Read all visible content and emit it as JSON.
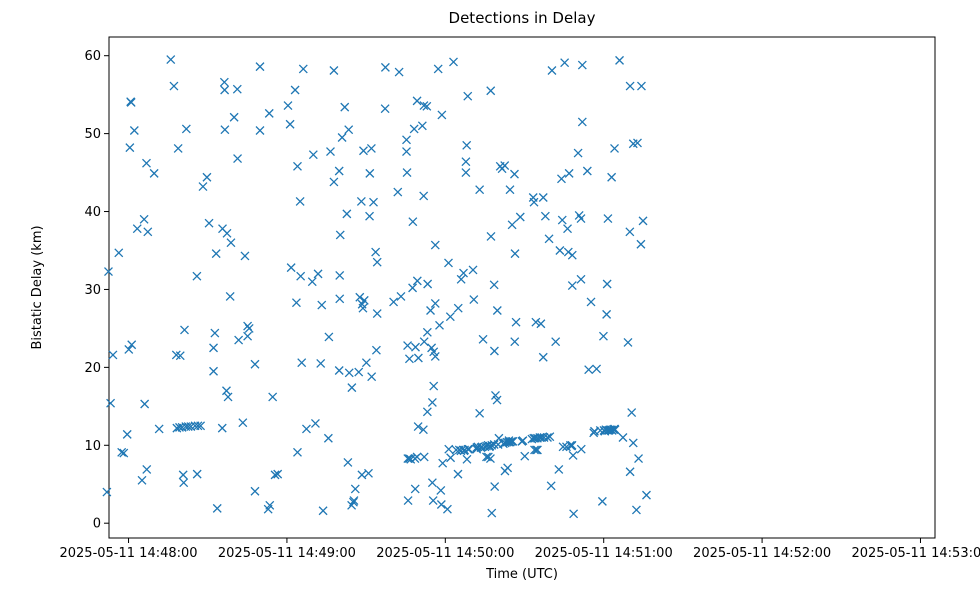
{
  "chart_data": {
    "type": "scatter",
    "title": "Detections in Delay",
    "xlabel": "Time (UTC)",
    "ylabel": "Bistatic Delay (km)",
    "x_tick_labels": [
      "2025-05-11 14:48:00",
      "2025-05-11 14:49:00",
      "2025-05-11 14:50:00",
      "2025-05-11 14:51:00",
      "2025-05-11 14:52:00",
      "2025-05-11 14:53:00"
    ],
    "x_ticks_seconds": [
      0,
      60,
      120,
      180,
      240,
      300
    ],
    "y_ticks": [
      0,
      10,
      20,
      30,
      40,
      50,
      60
    ],
    "xlim_seconds_after_14_48_00": [
      -7.4,
      305.5
    ],
    "ylim": [
      -1.9,
      62.4
    ],
    "grid": false,
    "marker": "x",
    "color": "#1f77b4",
    "points_seconds_after_14_48_00": [
      [
        -8.2,
        4.0
      ],
      [
        -7.6,
        32.3
      ],
      [
        -6.8,
        15.4
      ],
      [
        -5.9,
        21.6
      ],
      [
        -3.7,
        34.7
      ],
      [
        -2.6,
        9.1
      ],
      [
        -1.8,
        9.0
      ],
      [
        -0.5,
        11.4
      ],
      [
        0.1,
        22.3
      ],
      [
        0.5,
        48.2
      ],
      [
        0.8,
        54.1
      ],
      [
        1.0,
        54.0
      ],
      [
        1.2,
        22.9
      ],
      [
        2.2,
        50.4
      ],
      [
        3.3,
        37.8
      ],
      [
        5.1,
        5.5
      ],
      [
        5.9,
        39.0
      ],
      [
        6.1,
        15.3
      ],
      [
        6.8,
        46.2
      ],
      [
        6.9,
        6.9
      ],
      [
        7.3,
        37.4
      ],
      [
        9.7,
        44.9
      ],
      [
        11.6,
        12.1
      ],
      [
        16.0,
        59.5
      ],
      [
        17.2,
        56.1
      ],
      [
        18.1,
        21.6
      ],
      [
        18.3,
        12.2
      ],
      [
        18.8,
        48.1
      ],
      [
        19.3,
        12.3
      ],
      [
        19.6,
        21.5
      ],
      [
        20.3,
        12.3
      ],
      [
        20.7,
        6.2
      ],
      [
        20.9,
        5.2
      ],
      [
        21.2,
        24.8
      ],
      [
        21.7,
        12.4
      ],
      [
        21.9,
        50.6
      ],
      [
        22.6,
        12.4
      ],
      [
        23.6,
        12.4
      ],
      [
        25.2,
        12.5
      ],
      [
        25.9,
        31.7
      ],
      [
        26.0,
        6.3
      ],
      [
        26.3,
        12.5
      ],
      [
        27.3,
        12.5
      ],
      [
        28.2,
        43.2
      ],
      [
        29.7,
        44.4
      ],
      [
        30.5,
        38.5
      ],
      [
        32.2,
        19.5
      ],
      [
        32.2,
        22.5
      ],
      [
        32.7,
        24.4
      ],
      [
        33.2,
        34.6
      ],
      [
        33.6,
        1.9
      ],
      [
        35.5,
        12.2
      ],
      [
        35.6,
        37.8
      ],
      [
        36.3,
        56.6
      ],
      [
        36.4,
        55.6
      ],
      [
        36.5,
        50.5
      ],
      [
        37.1,
        17.0
      ],
      [
        37.3,
        37.2
      ],
      [
        37.7,
        16.2
      ],
      [
        38.5,
        29.1
      ],
      [
        38.8,
        36.0
      ],
      [
        40.0,
        52.1
      ],
      [
        41.2,
        55.7
      ],
      [
        41.3,
        46.8
      ],
      [
        41.7,
        23.5
      ],
      [
        43.3,
        12.9
      ],
      [
        44.1,
        34.3
      ],
      [
        45.1,
        24.0
      ],
      [
        45.1,
        25.3
      ],
      [
        45.7,
        25.0
      ],
      [
        47.9,
        4.1
      ],
      [
        47.9,
        20.4
      ],
      [
        49.8,
        58.6
      ],
      [
        49.8,
        50.4
      ],
      [
        52.9,
        1.8
      ],
      [
        53.3,
        52.6
      ],
      [
        53.5,
        2.3
      ],
      [
        54.6,
        16.2
      ],
      [
        55.5,
        6.2
      ],
      [
        56.5,
        6.3
      ],
      [
        60.4,
        53.6
      ],
      [
        61.2,
        51.2
      ],
      [
        61.6,
        32.8
      ],
      [
        63.1,
        55.6
      ],
      [
        63.6,
        28.3
      ],
      [
        64.0,
        9.1
      ],
      [
        64.0,
        45.8
      ],
      [
        65.0,
        41.3
      ],
      [
        65.2,
        31.7
      ],
      [
        65.6,
        20.6
      ],
      [
        66.2,
        58.3
      ],
      [
        67.4,
        12.1
      ],
      [
        69.6,
        31.0
      ],
      [
        70.0,
        47.3
      ],
      [
        70.8,
        12.8
      ],
      [
        71.8,
        32.0
      ],
      [
        72.8,
        20.5
      ],
      [
        73.2,
        28.0
      ],
      [
        73.7,
        1.6
      ],
      [
        75.7,
        10.9
      ],
      [
        75.9,
        23.9
      ],
      [
        76.5,
        47.7
      ],
      [
        77.8,
        58.1
      ],
      [
        77.8,
        43.8
      ],
      [
        79.8,
        19.6
      ],
      [
        79.8,
        45.2
      ],
      [
        80.0,
        31.8
      ],
      [
        80.0,
        28.8
      ],
      [
        80.2,
        37.0
      ],
      [
        80.9,
        49.5
      ],
      [
        81.9,
        53.4
      ],
      [
        82.7,
        39.7
      ],
      [
        83.1,
        7.8
      ],
      [
        83.4,
        50.5
      ],
      [
        83.6,
        19.3
      ],
      [
        84.5,
        2.3
      ],
      [
        84.6,
        17.4
      ],
      [
        85.2,
        2.7
      ],
      [
        85.4,
        2.9
      ],
      [
        85.9,
        4.4
      ],
      [
        87.2,
        19.4
      ],
      [
        87.6,
        29.0
      ],
      [
        88.2,
        41.3
      ],
      [
        88.4,
        6.2
      ],
      [
        88.5,
        28.1
      ],
      [
        88.8,
        27.6
      ],
      [
        89.0,
        47.8
      ],
      [
        89.3,
        28.6
      ],
      [
        90.1,
        20.6
      ],
      [
        90.9,
        6.4
      ],
      [
        91.3,
        39.4
      ],
      [
        91.4,
        44.9
      ],
      [
        92.0,
        48.1
      ],
      [
        92.1,
        18.8
      ],
      [
        92.8,
        41.2
      ],
      [
        93.6,
        34.8
      ],
      [
        93.9,
        22.2
      ],
      [
        94.2,
        33.5
      ],
      [
        94.2,
        26.9
      ],
      [
        97.2,
        53.2
      ],
      [
        97.3,
        58.5
      ],
      [
        100.4,
        28.4
      ],
      [
        102.0,
        42.5
      ],
      [
        102.5,
        57.9
      ],
      [
        103.2,
        29.1
      ],
      [
        105.3,
        47.7
      ],
      [
        105.3,
        49.2
      ],
      [
        105.5,
        45.0
      ],
      [
        105.7,
        22.8
      ],
      [
        105.8,
        8.3
      ],
      [
        105.9,
        2.9
      ],
      [
        106.4,
        21.1
      ],
      [
        106.4,
        8.3
      ],
      [
        106.9,
        8.2
      ],
      [
        107.6,
        30.2
      ],
      [
        107.7,
        38.7
      ],
      [
        108.2,
        50.6
      ],
      [
        108.5,
        8.3
      ],
      [
        108.6,
        4.4
      ],
      [
        108.7,
        22.6
      ],
      [
        109.3,
        8.5
      ],
      [
        109.3,
        54.2
      ],
      [
        109.4,
        31.1
      ],
      [
        109.7,
        12.4
      ],
      [
        109.8,
        21.2
      ],
      [
        111.3,
        51.0
      ],
      [
        111.7,
        12.0
      ],
      [
        111.8,
        42.0
      ],
      [
        111.9,
        53.6
      ],
      [
        112.0,
        23.3
      ],
      [
        112.0,
        8.5
      ],
      [
        113.0,
        53.5
      ],
      [
        113.2,
        24.5
      ],
      [
        113.2,
        14.3
      ],
      [
        113.3,
        30.7
      ],
      [
        114.4,
        27.3
      ],
      [
        114.8,
        22.5
      ],
      [
        115.1,
        15.5
      ],
      [
        115.1,
        5.2
      ],
      [
        115.4,
        2.9
      ],
      [
        115.6,
        22.0
      ],
      [
        115.6,
        17.6
      ],
      [
        116.2,
        28.2
      ],
      [
        116.2,
        21.4
      ],
      [
        116.2,
        35.7
      ],
      [
        117.3,
        58.3
      ],
      [
        117.8,
        25.4
      ],
      [
        118.3,
        4.2
      ],
      [
        118.5,
        2.4
      ],
      [
        118.7,
        52.4
      ],
      [
        119.0,
        7.7
      ],
      [
        120.8,
        1.8
      ],
      [
        121.2,
        33.4
      ],
      [
        121.3,
        9.5
      ],
      [
        121.9,
        26.5
      ],
      [
        122.0,
        8.4
      ],
      [
        123.1,
        59.2
      ],
      [
        124.1,
        9.4
      ],
      [
        124.8,
        6.3
      ],
      [
        124.9,
        27.6
      ],
      [
        125.3,
        9.4
      ],
      [
        125.9,
        9.3
      ],
      [
        126.0,
        31.3
      ],
      [
        126.9,
        32.1
      ],
      [
        127.1,
        9.3
      ],
      [
        127.3,
        9.4
      ],
      [
        127.8,
        45.0
      ],
      [
        127.8,
        46.4
      ],
      [
        128.1,
        48.5
      ],
      [
        128.2,
        8.2
      ],
      [
        128.5,
        54.8
      ],
      [
        128.6,
        9.5
      ],
      [
        129.0,
        9.5
      ],
      [
        130.5,
        32.5
      ],
      [
        130.8,
        28.7
      ],
      [
        131.9,
        9.5
      ],
      [
        131.9,
        9.7
      ],
      [
        132.3,
        9.8
      ],
      [
        133.0,
        42.8
      ],
      [
        133.0,
        14.1
      ],
      [
        133.5,
        9.7
      ],
      [
        133.9,
        9.8
      ],
      [
        134.3,
        23.6
      ],
      [
        135.0,
        9.8
      ],
      [
        135.6,
        8.5
      ],
      [
        135.6,
        9.9
      ],
      [
        136.2,
        10.0
      ],
      [
        136.3,
        8.5
      ],
      [
        136.7,
        9.8
      ],
      [
        136.9,
        9.9
      ],
      [
        137.1,
        8.3
      ],
      [
        137.2,
        55.5
      ],
      [
        137.3,
        36.8
      ],
      [
        137.6,
        1.3
      ],
      [
        137.6,
        10.0
      ],
      [
        138.5,
        10.1
      ],
      [
        138.5,
        30.6
      ],
      [
        138.6,
        22.1
      ],
      [
        138.7,
        4.7
      ],
      [
        139.0,
        16.4
      ],
      [
        139.6,
        15.8
      ],
      [
        139.7,
        27.3
      ],
      [
        140.0,
        10.1
      ],
      [
        140.3,
        10.9
      ],
      [
        140.8,
        45.8
      ],
      [
        141.5,
        45.5
      ],
      [
        142.0,
        10.2
      ],
      [
        142.5,
        45.9
      ],
      [
        142.6,
        6.7
      ],
      [
        142.7,
        10.3
      ],
      [
        143.3,
        10.4
      ],
      [
        143.6,
        7.1
      ],
      [
        144.0,
        10.4
      ],
      [
        144.1,
        10.6
      ],
      [
        144.5,
        42.8
      ],
      [
        144.6,
        10.4
      ],
      [
        145.1,
        10.5
      ],
      [
        145.3,
        38.3
      ],
      [
        145.6,
        10.5
      ],
      [
        146.2,
        44.8
      ],
      [
        146.3,
        23.3
      ],
      [
        146.4,
        34.6
      ],
      [
        146.8,
        25.8
      ],
      [
        148.4,
        39.3
      ],
      [
        149.0,
        10.5
      ],
      [
        149.4,
        10.6
      ],
      [
        150.1,
        8.6
      ],
      [
        152.8,
        10.8
      ],
      [
        153.3,
        41.8
      ],
      [
        153.5,
        10.9
      ],
      [
        153.6,
        41.2
      ],
      [
        153.8,
        9.4
      ],
      [
        154.1,
        10.9
      ],
      [
        154.3,
        25.8
      ],
      [
        154.5,
        9.4
      ],
      [
        154.9,
        10.9
      ],
      [
        154.9,
        9.4
      ],
      [
        155.8,
        11.0
      ],
      [
        156.2,
        25.6
      ],
      [
        156.5,
        11.0
      ],
      [
        157.1,
        41.8
      ],
      [
        157.1,
        21.3
      ],
      [
        157.4,
        11.0
      ],
      [
        157.9,
        39.4
      ],
      [
        158.7,
        11.0
      ],
      [
        159.3,
        36.5
      ],
      [
        159.6,
        11.1
      ],
      [
        160.1,
        4.8
      ],
      [
        160.4,
        58.1
      ],
      [
        161.8,
        23.3
      ],
      [
        163.0,
        6.9
      ],
      [
        163.4,
        35.0
      ],
      [
        164.0,
        44.2
      ],
      [
        164.3,
        38.9
      ],
      [
        164.6,
        9.8
      ],
      [
        165.2,
        59.1
      ],
      [
        165.9,
        9.8
      ],
      [
        166.3,
        37.8
      ],
      [
        166.6,
        34.8
      ],
      [
        166.9,
        44.9
      ],
      [
        167.4,
        10.0
      ],
      [
        167.8,
        9.9
      ],
      [
        168.0,
        10.0
      ],
      [
        168.1,
        34.4
      ],
      [
        168.1,
        30.5
      ],
      [
        168.4,
        8.7
      ],
      [
        168.6,
        1.2
      ],
      [
        170.3,
        47.5
      ],
      [
        170.7,
        39.5
      ],
      [
        171.4,
        31.3
      ],
      [
        171.4,
        39.1
      ],
      [
        171.5,
        9.5
      ],
      [
        171.9,
        51.5
      ],
      [
        171.9,
        58.8
      ],
      [
        173.8,
        45.2
      ],
      [
        174.3,
        19.7
      ],
      [
        175.2,
        28.4
      ],
      [
        176.2,
        11.6
      ],
      [
        176.5,
        11.8
      ],
      [
        177.3,
        19.8
      ],
      [
        178.7,
        11.9
      ],
      [
        179.5,
        2.8
      ],
      [
        179.9,
        24.0
      ],
      [
        180.1,
        11.9
      ],
      [
        180.4,
        11.8
      ],
      [
        180.8,
        12.0
      ],
      [
        181.1,
        26.8
      ],
      [
        181.3,
        30.7
      ],
      [
        181.5,
        11.9
      ],
      [
        181.6,
        39.1
      ],
      [
        182.0,
        11.9
      ],
      [
        182.3,
        12.0
      ],
      [
        182.9,
        12.0
      ],
      [
        183.0,
        44.4
      ],
      [
        183.2,
        11.9
      ],
      [
        183.8,
        12.0
      ],
      [
        184.1,
        12.1
      ],
      [
        184.1,
        48.1
      ],
      [
        184.3,
        12.0
      ],
      [
        186.0,
        59.4
      ],
      [
        187.3,
        11.0
      ],
      [
        189.2,
        23.2
      ],
      [
        189.9,
        37.4
      ],
      [
        190.0,
        56.1
      ],
      [
        190.0,
        6.6
      ],
      [
        190.6,
        14.2
      ],
      [
        191.2,
        48.7
      ],
      [
        191.2,
        10.3
      ],
      [
        192.4,
        1.7
      ],
      [
        192.8,
        48.8
      ],
      [
        193.2,
        8.3
      ],
      [
        194.1,
        35.8
      ],
      [
        194.3,
        56.1
      ],
      [
        194.9,
        38.8
      ],
      [
        196.2,
        3.6
      ]
    ]
  }
}
